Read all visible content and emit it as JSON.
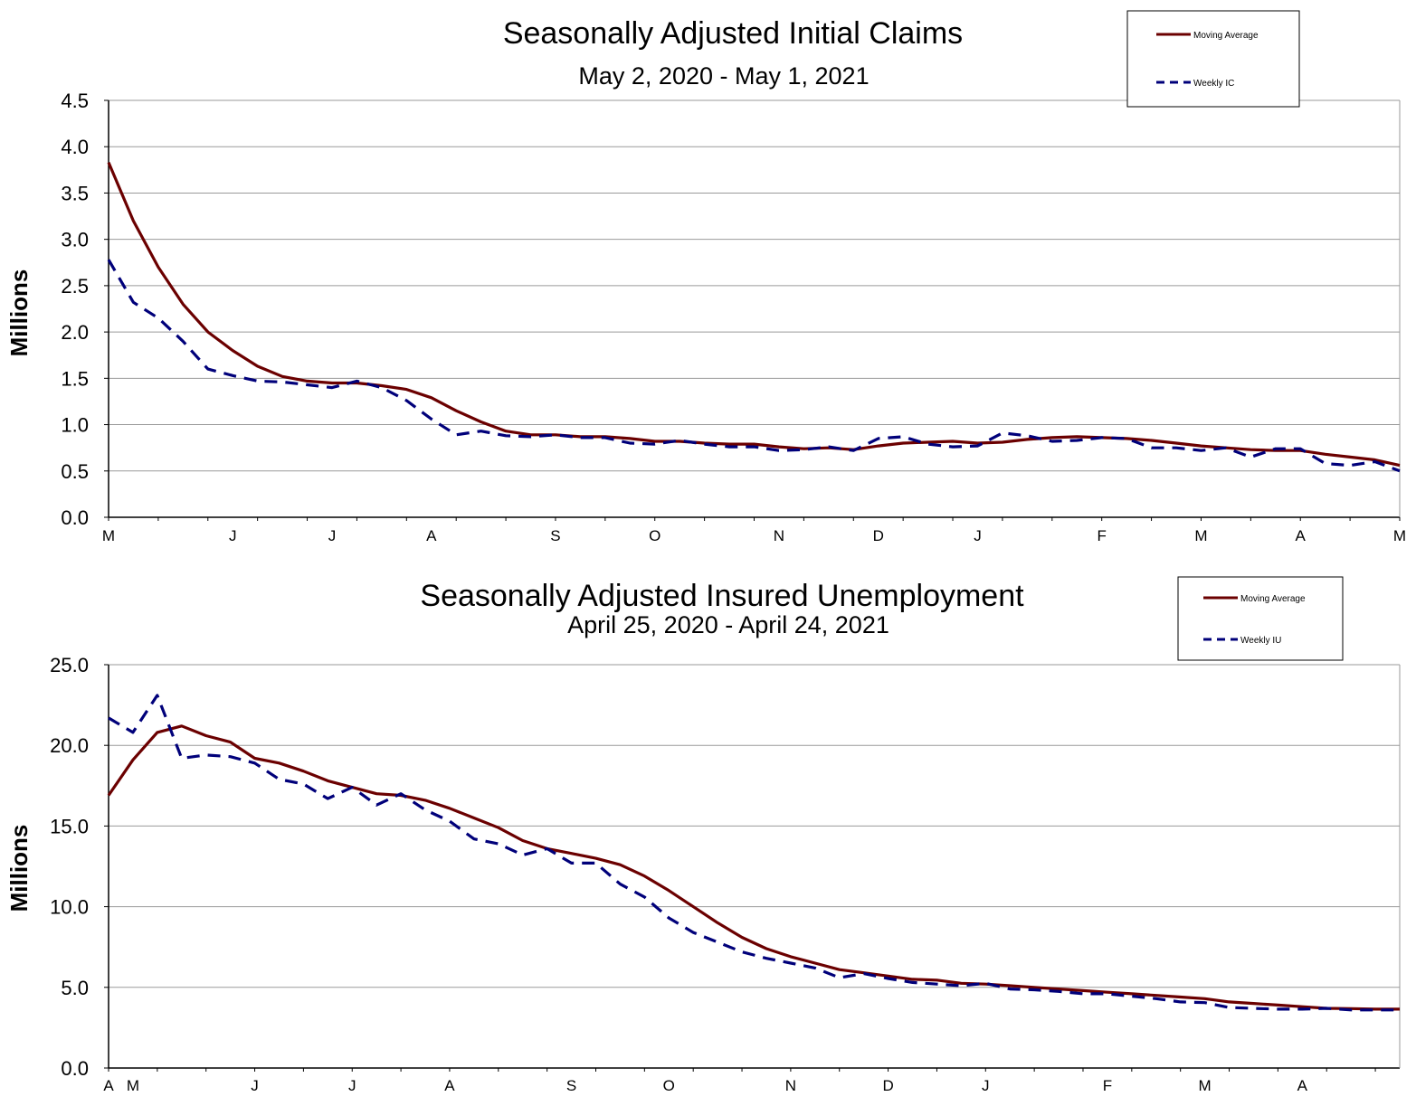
{
  "colors": {
    "moving_average": "#6b0000",
    "weekly": "#00007a",
    "grid": "#9a9a9a"
  },
  "chart_data": [
    {
      "type": "line",
      "title": "Seasonally Adjusted Initial Claims",
      "subtitle": "May 2, 2020 - May 1, 2021",
      "ylabel": "Millions",
      "ylim": [
        0,
        4.5
      ],
      "yticks": [
        "0.0",
        "0.5",
        "1.0",
        "1.5",
        "2.0",
        "2.5",
        "3.0",
        "3.5",
        "4.0",
        "4.5"
      ],
      "xtick_labels": [
        {
          "label": "M",
          "week": 0
        },
        {
          "label": "J",
          "week": 5
        },
        {
          "label": "J",
          "week": 9
        },
        {
          "label": "A",
          "week": 13
        },
        {
          "label": "S",
          "week": 18
        },
        {
          "label": "O",
          "week": 22
        },
        {
          "label": "N",
          "week": 27
        },
        {
          "label": "D",
          "week": 31
        },
        {
          "label": "J",
          "week": 35
        },
        {
          "label": "F",
          "week": 40
        },
        {
          "label": "M",
          "week": 44
        },
        {
          "label": "A",
          "week": 48
        },
        {
          "label": "M",
          "week": 52
        }
      ],
      "grid": true,
      "legend_position": "top-right",
      "series": [
        {
          "name": "Moving Average",
          "style": "solid",
          "values": [
            3.83,
            3.2,
            2.7,
            2.3,
            2.0,
            1.8,
            1.63,
            1.52,
            1.47,
            1.45,
            1.45,
            1.42,
            1.38,
            1.29,
            1.15,
            1.03,
            0.93,
            0.89,
            0.89,
            0.87,
            0.87,
            0.85,
            0.82,
            0.82,
            0.8,
            0.79,
            0.79,
            0.76,
            0.74,
            0.75,
            0.73,
            0.77,
            0.8,
            0.81,
            0.82,
            0.8,
            0.81,
            0.84,
            0.86,
            0.87,
            0.86,
            0.85,
            0.83,
            0.8,
            0.77,
            0.75,
            0.73,
            0.72,
            0.72,
            0.68,
            0.65,
            0.62,
            0.56
          ]
        },
        {
          "name": "Weekly IC",
          "style": "dashed",
          "values": [
            2.78,
            2.32,
            2.15,
            1.9,
            1.6,
            1.53,
            1.47,
            1.46,
            1.43,
            1.4,
            1.47,
            1.4,
            1.26,
            1.06,
            0.89,
            0.93,
            0.88,
            0.87,
            0.89,
            0.86,
            0.86,
            0.8,
            0.79,
            0.83,
            0.79,
            0.76,
            0.76,
            0.72,
            0.73,
            0.76,
            0.72,
            0.85,
            0.87,
            0.79,
            0.76,
            0.77,
            0.91,
            0.88,
            0.82,
            0.83,
            0.86,
            0.85,
            0.75,
            0.75,
            0.72,
            0.75,
            0.65,
            0.74,
            0.74,
            0.58,
            0.56,
            0.6,
            0.5
          ]
        }
      ]
    },
    {
      "type": "line",
      "title": "Seasonally Adjusted Insured Unemployment",
      "subtitle": "April 25, 2020 - April 24, 2021",
      "ylabel": "Millions",
      "ylim": [
        0,
        25
      ],
      "yticks": [
        "0.0",
        "5.0",
        "10.0",
        "15.0",
        "20.0",
        "25.0"
      ],
      "xtick_labels": [
        {
          "label": "A",
          "week": 0
        },
        {
          "label": "M",
          "week": 1
        },
        {
          "label": "J",
          "week": 6
        },
        {
          "label": "J",
          "week": 10
        },
        {
          "label": "A",
          "week": 14
        },
        {
          "label": "S",
          "week": 19
        },
        {
          "label": "O",
          "week": 23
        },
        {
          "label": "N",
          "week": 28
        },
        {
          "label": "D",
          "week": 32
        },
        {
          "label": "J",
          "week": 36
        },
        {
          "label": "F",
          "week": 41
        },
        {
          "label": "M",
          "week": 45
        },
        {
          "label": "A",
          "week": 49
        }
      ],
      "grid": true,
      "legend_position": "top-right",
      "series": [
        {
          "name": "Moving Average",
          "style": "solid",
          "values": [
            16.9,
            19.1,
            20.8,
            21.2,
            20.6,
            20.2,
            19.2,
            18.9,
            18.4,
            17.8,
            17.4,
            17.0,
            16.9,
            16.6,
            16.1,
            15.5,
            14.9,
            14.1,
            13.6,
            13.3,
            13.0,
            12.6,
            11.9,
            11.0,
            10.0,
            9.0,
            8.1,
            7.4,
            6.9,
            6.5,
            6.1,
            5.9,
            5.7,
            5.5,
            5.45,
            5.25,
            5.2,
            5.1,
            5.0,
            4.9,
            4.8,
            4.7,
            4.6,
            4.5,
            4.4,
            4.3,
            4.1,
            4.0,
            3.9,
            3.8,
            3.7,
            3.68,
            3.65,
            3.65
          ]
        },
        {
          "name": "Weekly IU",
          "style": "dashed",
          "values": [
            21.7,
            20.8,
            23.1,
            19.2,
            19.4,
            19.3,
            18.9,
            17.9,
            17.6,
            16.7,
            17.4,
            16.3,
            17.0,
            16.0,
            15.3,
            14.2,
            13.9,
            13.2,
            13.6,
            12.7,
            12.7,
            11.4,
            10.6,
            9.3,
            8.4,
            7.8,
            7.2,
            6.8,
            6.5,
            6.2,
            5.6,
            5.85,
            5.55,
            5.3,
            5.2,
            5.1,
            5.25,
            4.9,
            4.85,
            4.75,
            4.6,
            4.6,
            4.45,
            4.3,
            4.1,
            4.05,
            3.75,
            3.7,
            3.65,
            3.65,
            3.7,
            3.6,
            3.6,
            3.6
          ]
        }
      ]
    }
  ]
}
